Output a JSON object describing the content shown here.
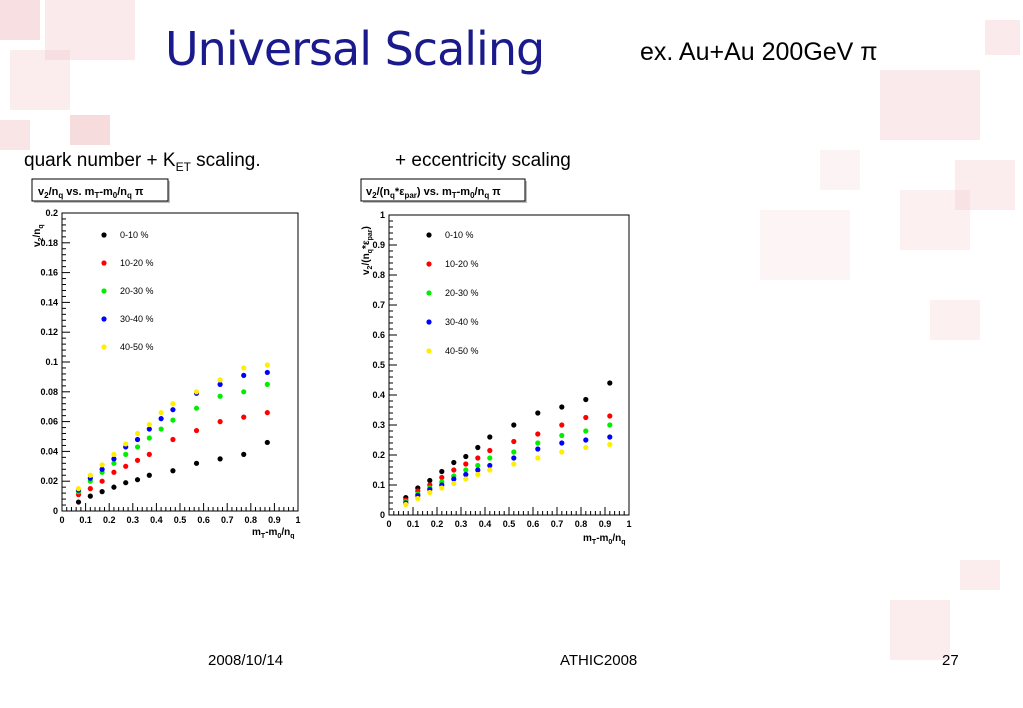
{
  "slide": {
    "title": "Universal Scaling",
    "subtitle": "ex. Au+Au  200GeV π",
    "left_caption": {
      "main": "quark number + K",
      "sub": "ET",
      "tail": " scaling."
    },
    "right_caption": "+ eccentricity scaling"
  },
  "footer": {
    "date": "2008/10/14",
    "event": "ATHIC2008",
    "page": "27"
  },
  "colors": {
    "title": "#1a1a8c",
    "background_squares": "#f2c4c8"
  },
  "legend_labels": [
    "0-10 %",
    "10-20 %",
    "20-30 %",
    "30-40 %",
    "40-50 %"
  ],
  "chart_data": [
    {
      "type": "scatter",
      "title": "v2/nq vs. mT-m0/nq π",
      "title_parts": {
        "v": "v",
        "v_sub": "2",
        "slash": "/n",
        "n_sub": "q",
        "mid": " vs. m",
        "m_sub": "T",
        "tail": "-m",
        "zero": "0",
        "slash2": "/n",
        "n2_sub": "q",
        "end": " π"
      },
      "xlabel": "mT-m0/nq",
      "ylabel": "v2/nq",
      "xlim": [
        0,
        1
      ],
      "ylim": [
        0,
        0.2
      ],
      "xticks": [
        "0",
        "0.1",
        "0.2",
        "0.3",
        "0.4",
        "0.5",
        "0.6",
        "0.7",
        "0.8",
        "0.9",
        "1"
      ],
      "yticks": [
        "0",
        "0.02",
        "0.04",
        "0.06",
        "0.08",
        "0.1",
        "0.12",
        "0.14",
        "0.16",
        "0.18",
        "0.2"
      ],
      "legend_position": "top-left",
      "series": [
        {
          "name": "0-10 %",
          "color": "#000000",
          "x": [
            0.07,
            0.12,
            0.17,
            0.22,
            0.27,
            0.32,
            0.37,
            0.47,
            0.57,
            0.67,
            0.77,
            0.87
          ],
          "y": [
            0.006,
            0.01,
            0.013,
            0.016,
            0.019,
            0.021,
            0.024,
            0.027,
            0.032,
            0.035,
            0.038,
            0.046
          ]
        },
        {
          "name": "10-20 %",
          "color": "#ff0000",
          "x": [
            0.07,
            0.12,
            0.17,
            0.22,
            0.27,
            0.32,
            0.37,
            0.47,
            0.57,
            0.67,
            0.77,
            0.87
          ],
          "y": [
            0.011,
            0.015,
            0.02,
            0.026,
            0.03,
            0.034,
            0.038,
            0.048,
            0.054,
            0.06,
            0.063,
            0.066
          ]
        },
        {
          "name": "20-30 %",
          "color": "#00ee00",
          "x": [
            0.07,
            0.12,
            0.17,
            0.22,
            0.27,
            0.32,
            0.37,
            0.42,
            0.47,
            0.57,
            0.67,
            0.77,
            0.87
          ],
          "y": [
            0.013,
            0.02,
            0.026,
            0.032,
            0.038,
            0.043,
            0.049,
            0.055,
            0.061,
            0.069,
            0.077,
            0.08,
            0.085
          ]
        },
        {
          "name": "30-40 %",
          "color": "#0000ff",
          "x": [
            0.07,
            0.12,
            0.17,
            0.22,
            0.27,
            0.32,
            0.37,
            0.42,
            0.47,
            0.57,
            0.67,
            0.77,
            0.87
          ],
          "y": [
            0.014,
            0.022,
            0.028,
            0.035,
            0.043,
            0.048,
            0.055,
            0.062,
            0.068,
            0.079,
            0.085,
            0.091,
            0.093
          ]
        },
        {
          "name": "40-50 %",
          "color": "#ffee00",
          "x": [
            0.07,
            0.12,
            0.17,
            0.22,
            0.27,
            0.32,
            0.37,
            0.42,
            0.47,
            0.57,
            0.67,
            0.77,
            0.87
          ],
          "y": [
            0.015,
            0.024,
            0.031,
            0.038,
            0.045,
            0.052,
            0.058,
            0.066,
            0.072,
            0.08,
            0.088,
            0.096,
            0.098
          ]
        }
      ]
    },
    {
      "type": "scatter",
      "title": "v2/(nq*εpar) vs. mT-m0/nq π",
      "title_parts": {
        "v": "v",
        "v_sub": "2",
        "mid1": "/(n",
        "n_sub": "q",
        "eps": "*ε",
        "eps_sub": "par",
        "mid2": ") vs. m",
        "m_sub": "T",
        "tail": "-m",
        "zero": "0",
        "slash2": "/n",
        "n2_sub": "q",
        "end": " π"
      },
      "xlabel": "mT-m0/nq",
      "ylabel": "v2/(nq*εpar)",
      "xlim": [
        0,
        1
      ],
      "ylim": [
        0,
        1
      ],
      "xticks": [
        "0",
        "0.1",
        "0.2",
        "0.3",
        "0.4",
        "0.5",
        "0.6",
        "0.7",
        "0.8",
        "0.9",
        "1"
      ],
      "yticks": [
        "0",
        "0.1",
        "0.2",
        "0.3",
        "0.4",
        "0.5",
        "0.6",
        "0.7",
        "0.8",
        "0.9",
        "1"
      ],
      "legend_position": "top-left",
      "series": [
        {
          "name": "0-10 %",
          "color": "#000000",
          "x": [
            0.07,
            0.12,
            0.17,
            0.22,
            0.27,
            0.32,
            0.37,
            0.42,
            0.52,
            0.62,
            0.72,
            0.82,
            0.92
          ],
          "y": [
            0.058,
            0.09,
            0.115,
            0.145,
            0.175,
            0.195,
            0.225,
            0.26,
            0.3,
            0.34,
            0.36,
            0.385,
            0.44
          ]
        },
        {
          "name": "10-20 %",
          "color": "#ff0000",
          "x": [
            0.07,
            0.12,
            0.17,
            0.22,
            0.27,
            0.32,
            0.37,
            0.42,
            0.52,
            0.62,
            0.72,
            0.82,
            0.92
          ],
          "y": [
            0.05,
            0.08,
            0.1,
            0.125,
            0.15,
            0.17,
            0.19,
            0.215,
            0.245,
            0.27,
            0.3,
            0.325,
            0.33
          ]
        },
        {
          "name": "20-30 %",
          "color": "#00ee00",
          "x": [
            0.07,
            0.12,
            0.17,
            0.22,
            0.27,
            0.32,
            0.37,
            0.42,
            0.52,
            0.62,
            0.72,
            0.82,
            0.92
          ],
          "y": [
            0.045,
            0.07,
            0.09,
            0.11,
            0.13,
            0.15,
            0.165,
            0.19,
            0.21,
            0.24,
            0.265,
            0.28,
            0.3
          ]
        },
        {
          "name": "30-40 %",
          "color": "#0000ff",
          "x": [
            0.07,
            0.12,
            0.17,
            0.22,
            0.27,
            0.32,
            0.37,
            0.42,
            0.52,
            0.62,
            0.72,
            0.82,
            0.92
          ],
          "y": [
            0.04,
            0.065,
            0.085,
            0.1,
            0.12,
            0.135,
            0.15,
            0.165,
            0.19,
            0.22,
            0.24,
            0.25,
            0.26
          ]
        },
        {
          "name": "40-50 %",
          "color": "#ffee00",
          "x": [
            0.07,
            0.12,
            0.17,
            0.22,
            0.27,
            0.32,
            0.37,
            0.42,
            0.52,
            0.62,
            0.72,
            0.82,
            0.92
          ],
          "y": [
            0.035,
            0.055,
            0.075,
            0.09,
            0.105,
            0.12,
            0.135,
            0.15,
            0.17,
            0.19,
            0.21,
            0.225,
            0.235
          ]
        }
      ]
    }
  ]
}
